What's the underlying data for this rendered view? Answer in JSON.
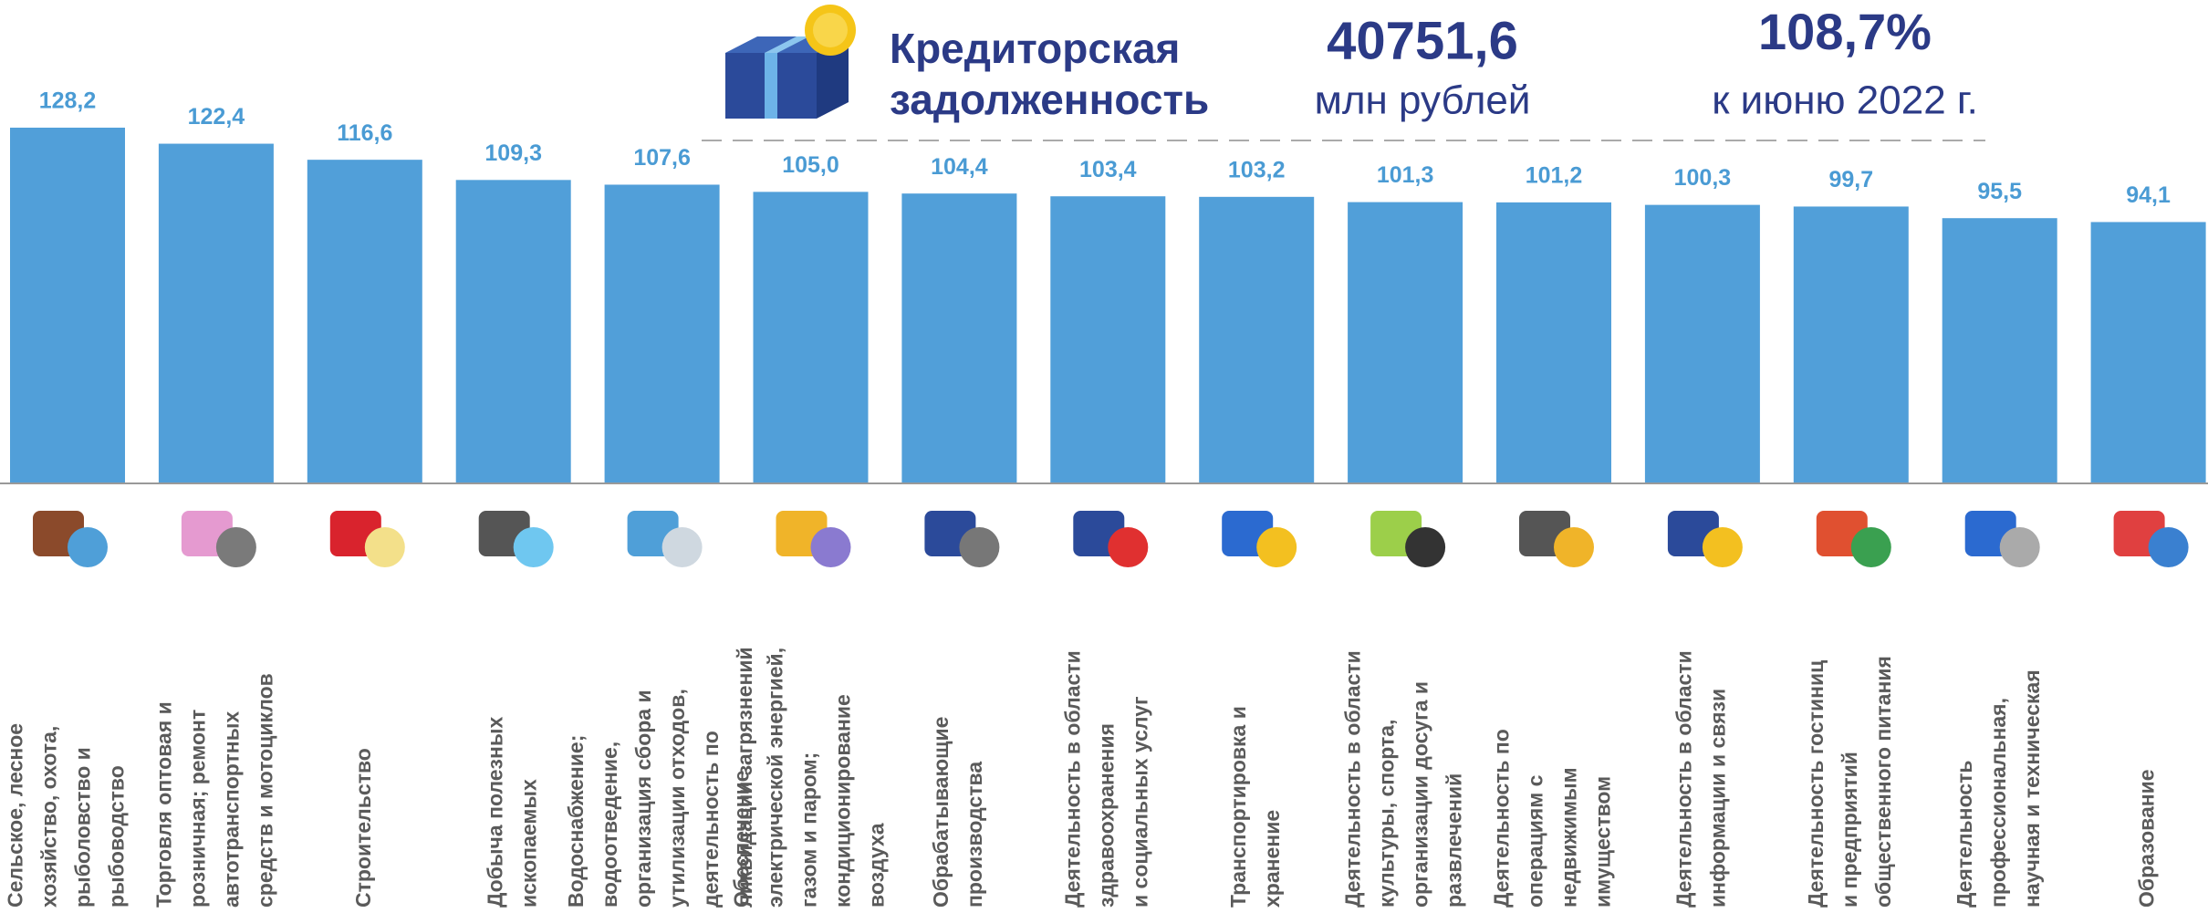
{
  "chart_data": {
    "type": "bar",
    "header": {
      "title_lines": [
        "Кредиторская",
        "задолженность"
      ],
      "amount": "40751,6",
      "amount_unit": "млн рублей",
      "change": "108,7%",
      "change_note": "к июню 2022 г."
    },
    "categories": [
      [
        "Сельское, лесное",
        "хозяйство, охота,",
        "рыболовство и",
        "рыбоводство"
      ],
      [
        "Торговля оптовая и",
        "розничная; ремонт",
        "автотранспортных",
        "средств и мотоциклов"
      ],
      [
        "Строительство"
      ],
      [
        "Добыча полезных",
        "ископаемых"
      ],
      [
        "Водоснабжение;",
        "водоотведение,",
        "организация сбора и",
        "утилизации отходов,",
        "деятельность по",
        "ликвидации загрязнений"
      ],
      [
        "Обеспечение",
        "электрической энергией,",
        "газом  и паром;",
        "кондиционирование",
        "воздуха"
      ],
      [
        "Обрабатывающие",
        "производства"
      ],
      [
        "Деятельность в области",
        "здравоохранения",
        "и социальных услуг"
      ],
      [
        "Транспортировка и",
        "хранение"
      ],
      [
        "Деятельность в области",
        "культуры, спорта,",
        "организации досуга и",
        "развлечений"
      ],
      [
        "Деятельность по",
        "операциям с",
        "недвижимым",
        "имуществом"
      ],
      [
        "Деятельность в области",
        "информации и связи"
      ],
      [
        "Деятельность гостиниц",
        "и предприятий",
        "общественного питания"
      ],
      [
        "Деятельность",
        "профессиональная,",
        "научная и техническая"
      ],
      [
        "Образование"
      ]
    ],
    "values": [
      128.2,
      122.4,
      116.6,
      109.3,
      107.6,
      105.0,
      104.4,
      103.4,
      103.2,
      101.3,
      101.2,
      100.3,
      99.7,
      95.5,
      94.1
    ],
    "value_labels": [
      "128,2",
      "122,4",
      "116,6",
      "109,3",
      "107,6",
      "105,0",
      "104,4",
      "103,4",
      "103,2",
      "101,3",
      "101,2",
      "100,3",
      "99,7",
      "95,5",
      "94,1"
    ],
    "color": "#519fd9",
    "ylim": [
      0,
      130
    ]
  }
}
